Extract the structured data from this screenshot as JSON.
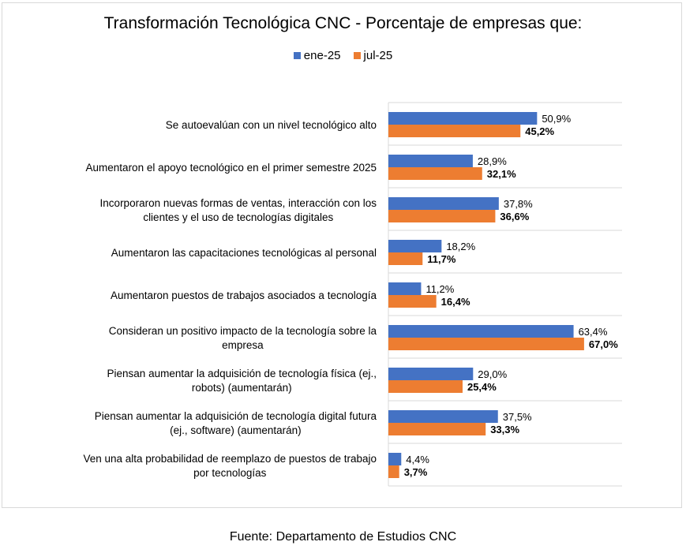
{
  "chart_data": {
    "type": "bar",
    "orientation": "horizontal",
    "title": "Transformación Tecnológica CNC - Porcentaje de empresas que:",
    "xlabel": "",
    "ylabel": "",
    "xlim": [
      0,
      80
    ],
    "grid": "horizontal category separators",
    "legend_position": "top",
    "categories": [
      [
        "Se autoevalúan con un nivel tecnológico alto"
      ],
      [
        "Aumentaron el apoyo tecnológico en el primer semestre 2025"
      ],
      [
        "Incorporaron nuevas formas de ventas, interacción con los",
        "clientes y el uso de tecnologías digitales"
      ],
      [
        "Aumentaron las capacitaciones tecnológicas al personal"
      ],
      [
        "Aumentaron puestos de trabajos asociados a tecnología"
      ],
      [
        "Consideran un positivo impacto de la tecnología sobre la",
        "empresa"
      ],
      [
        "Piensan aumentar la adquisición de tecnología física  (ej.,",
        "robots) (aumentarán)"
      ],
      [
        "Piensan aumentar la adquisición  de tecnología digital futura",
        "(ej., software) (aumentarán)"
      ],
      [
        "Ven una alta probabilidad de reemplazo de puestos de trabajo",
        "por tecnologías"
      ]
    ],
    "series": [
      {
        "name": "ene-25",
        "color": "#4472C4",
        "values": [
          50.9,
          28.9,
          37.8,
          18.2,
          11.2,
          63.4,
          29.0,
          37.5,
          4.4
        ],
        "labels": [
          "50,9%",
          "28,9%",
          "37,8%",
          "18,2%",
          "11,2%",
          "63,4%",
          "29,0%",
          "37,5%",
          "4,4%"
        ],
        "label_bold": false
      },
      {
        "name": "jul-25",
        "color": "#ED7D31",
        "values": [
          45.2,
          32.1,
          36.6,
          11.7,
          16.4,
          67.0,
          25.4,
          33.3,
          3.7
        ],
        "labels": [
          "45,2%",
          "32,1%",
          "36,6%",
          "11,7%",
          "16,4%",
          "67,0%",
          "25,4%",
          "33,3%",
          "3,7%"
        ],
        "label_bold": true
      }
    ]
  },
  "footer": "Fuente: Departamento de Estudios CNC"
}
